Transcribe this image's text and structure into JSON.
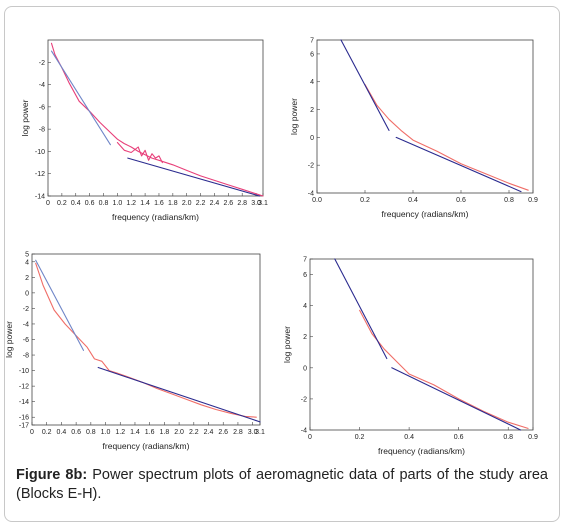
{
  "caption": {
    "label": "Figure 8b:",
    "text": " Power spectrum plots of aeromagnetic data of parts of the study area (Blocks E-H)."
  },
  "colors": {
    "observed": "#e8407a",
    "fit_line": "#2b2b8f",
    "fit_line_light": "#6f86c8",
    "observed_light": "#f06e68"
  },
  "chart_data": [
    {
      "type": "line",
      "xlabel": "frequency (radians/km)",
      "ylabel": "log power",
      "xlim": [
        0,
        3.1
      ],
      "ylim": [
        -14,
        0
      ],
      "xticks": [
        "0",
        "0.2",
        "0.4",
        "0.6",
        "0.8",
        "1.0",
        "1.2",
        "1.4",
        "1.6",
        "1.8",
        "2.0",
        "2.2",
        "2.4",
        "2.6",
        "2.8",
        "3.0",
        "3.1"
      ],
      "yticks": [
        "-2",
        "-4",
        "-6",
        "-8",
        "-10",
        "-12",
        "-14"
      ],
      "series": [
        {
          "values": [
            [
              0.05,
              -0.3
            ],
            [
              0.1,
              -1.3
            ],
            [
              0.2,
              -2.5
            ],
            [
              0.3,
              -3.8
            ],
            [
              0.45,
              -5.5
            ],
            [
              0.6,
              -6.4
            ],
            [
              0.75,
              -7.4
            ],
            [
              0.9,
              -8.3
            ],
            [
              1.0,
              -8.9
            ],
            [
              1.1,
              -9.3
            ],
            [
              1.2,
              -9.6
            ],
            [
              1.3,
              -10.0
            ],
            [
              1.4,
              -10.3
            ],
            [
              1.5,
              -10.6
            ],
            [
              1.6,
              -10.8
            ],
            [
              1.8,
              -11.2
            ],
            [
              2.0,
              -11.7
            ],
            [
              2.2,
              -12.2
            ],
            [
              2.4,
              -12.6
            ],
            [
              2.6,
              -13.0
            ],
            [
              2.8,
              -13.4
            ],
            [
              3.0,
              -13.8
            ],
            [
              3.1,
              -14.0
            ]
          ]
        },
        {
          "values": [
            [
              1.0,
              -9.2
            ],
            [
              1.1,
              -9.9
            ],
            [
              1.2,
              -10.1
            ],
            [
              1.3,
              -9.6
            ],
            [
              1.35,
              -10.4
            ],
            [
              1.4,
              -9.9
            ],
            [
              1.45,
              -10.8
            ],
            [
              1.5,
              -10.2
            ],
            [
              1.55,
              -10.6
            ],
            [
              1.6,
              -10.4
            ],
            [
              1.65,
              -11.0
            ]
          ]
        },
        {
          "values": [
            [
              0.05,
              -1.0
            ],
            [
              0.9,
              -9.4
            ]
          ]
        },
        {
          "values": [
            [
              1.15,
              -10.6
            ],
            [
              3.05,
              -14.0
            ]
          ]
        }
      ]
    },
    {
      "type": "line",
      "xlabel": "frequency (radians/km)",
      "ylabel": "log power",
      "xlim": [
        0,
        0.9
      ],
      "ylim": [
        -4,
        7
      ],
      "xticks": [
        "0.0",
        "0.2",
        "0.4",
        "0.6",
        "0.8",
        "0.9"
      ],
      "yticks": [
        "7",
        "6",
        "4",
        "2",
        "0",
        "-2",
        "-4"
      ],
      "series": [
        {
          "values": [
            [
              0.2,
              3.8
            ],
            [
              0.25,
              2.3
            ],
            [
              0.3,
              1.3
            ],
            [
              0.35,
              0.5
            ],
            [
              0.4,
              -0.2
            ],
            [
              0.5,
              -1.0
            ],
            [
              0.6,
              -1.9
            ],
            [
              0.7,
              -2.6
            ],
            [
              0.8,
              -3.3
            ],
            [
              0.88,
              -3.8
            ]
          ]
        },
        {
          "values": [
            [
              0.1,
              7.0
            ],
            [
              0.3,
              0.5
            ]
          ]
        },
        {
          "values": [
            [
              0.33,
              0.0
            ],
            [
              0.85,
              -3.9
            ]
          ]
        }
      ]
    },
    {
      "type": "line",
      "xlabel": "frequency (radians/km)",
      "ylabel": "log power",
      "xlim": [
        0,
        3.1
      ],
      "ylim": [
        -17,
        5
      ],
      "xticks": [
        "0",
        "0.2",
        "0.4",
        "0.6",
        "0.8",
        "1.0",
        "1.2",
        "1.4",
        "1.6",
        "1.8",
        "2.0",
        "2.2",
        "2.4",
        "2.6",
        "2.8",
        "3.0",
        "3.1"
      ],
      "yticks": [
        "5",
        "4",
        "2",
        "0",
        "-2",
        "-4",
        "-6",
        "-8",
        "-10",
        "-12",
        "-14",
        "-16",
        "-17"
      ],
      "series": [
        {
          "values": [
            [
              0.05,
              3.8
            ],
            [
              0.15,
              1.0
            ],
            [
              0.3,
              -2.2
            ],
            [
              0.45,
              -4.0
            ],
            [
              0.6,
              -5.5
            ],
            [
              0.75,
              -7.0
            ],
            [
              0.85,
              -8.5
            ],
            [
              0.95,
              -8.8
            ],
            [
              1.05,
              -10.0
            ],
            [
              1.15,
              -10.3
            ],
            [
              1.3,
              -10.8
            ],
            [
              1.5,
              -11.5
            ],
            [
              1.7,
              -12.3
            ],
            [
              1.9,
              -13.0
            ],
            [
              2.1,
              -13.7
            ],
            [
              2.3,
              -14.4
            ],
            [
              2.5,
              -15.0
            ],
            [
              2.7,
              -15.5
            ],
            [
              2.9,
              -15.9
            ],
            [
              3.05,
              -16.0
            ]
          ]
        },
        {
          "values": [
            [
              0.05,
              4.2
            ],
            [
              0.7,
              -7.4
            ]
          ]
        },
        {
          "values": [
            [
              0.9,
              -9.6
            ],
            [
              3.1,
              -16.6
            ]
          ]
        }
      ]
    },
    {
      "type": "line",
      "xlabel": "frequency (radians/km)",
      "ylabel": "log power",
      "xlim": [
        0,
        0.9
      ],
      "ylim": [
        -4,
        7
      ],
      "xticks": [
        "0",
        "0.2",
        "0.4",
        "0.6",
        "0.8",
        "0.9"
      ],
      "yticks": [
        "7",
        "6",
        "4",
        "2",
        "0",
        "-2",
        "-4"
      ],
      "series": [
        {
          "values": [
            [
              0.2,
              3.7
            ],
            [
              0.25,
              2.2
            ],
            [
              0.3,
              1.2
            ],
            [
              0.35,
              0.4
            ],
            [
              0.4,
              -0.4
            ],
            [
              0.5,
              -1.1
            ],
            [
              0.6,
              -2.0
            ],
            [
              0.7,
              -2.8
            ],
            [
              0.8,
              -3.5
            ],
            [
              0.88,
              -3.9
            ]
          ]
        },
        {
          "values": [
            [
              0.1,
              7.0
            ],
            [
              0.31,
              0.6
            ]
          ]
        },
        {
          "values": [
            [
              0.33,
              0.0
            ],
            [
              0.85,
              -4.0
            ]
          ]
        }
      ]
    }
  ]
}
